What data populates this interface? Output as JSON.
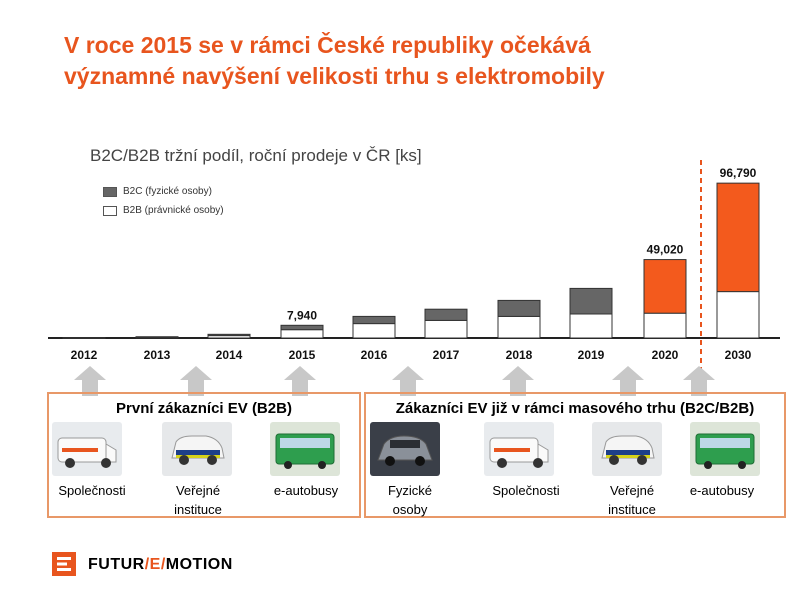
{
  "slide": {
    "title_line1": "V roce 2015 se v rámci České republiky očekává",
    "title_line2": "významné navýšení velikosti trhu s elektromobily"
  },
  "chart_data": {
    "type": "bar",
    "stacked": true,
    "title": "B2C/B2B tržní podíl, roční prodeje v ČR [ks]",
    "categories": [
      "2012",
      "2013",
      "2014",
      "2015",
      "2016",
      "2017",
      "2018",
      "2019",
      "2020",
      "2030"
    ],
    "series": [
      {
        "name": "B2B (právnické osoby)",
        "color": "#ffffff",
        "values": [
          100,
          400,
          1500,
          5200,
          9000,
          11000,
          13500,
          15000,
          15500,
          29000
        ]
      },
      {
        "name": "B2C (fyzické osoby)",
        "color": "#666666",
        "values": [
          100,
          400,
          800,
          2740,
          4500,
          7000,
          10000,
          16000,
          33520,
          67790
        ]
      }
    ],
    "highlight_categories": [
      "2020",
      "2030"
    ],
    "highlight_color": "#f35a1d",
    "total_labels": {
      "2015": "7,940",
      "2020": "49,020",
      "2030": "96,790"
    },
    "ylim": [
      0,
      100000
    ],
    "grid": false,
    "legend_position": "top-left",
    "divider_before_category": "2030"
  },
  "segments": {
    "left": {
      "title": "První zákazníci EV (B2B)",
      "items": [
        {
          "label_line1": "Společnosti",
          "label_line2": "",
          "icon": "van-icon"
        },
        {
          "label_line1": "Veřejné",
          "label_line2": "instituce",
          "icon": "police-car-icon"
        },
        {
          "label_line1": "e-autobusy",
          "label_line2": "",
          "icon": "bus-icon"
        }
      ]
    },
    "right": {
      "title": "Zákazníci EV již v rámci masového trhu (B2C/B2B)",
      "items": [
        {
          "label_line1": "Fyzické",
          "label_line2": "osoby",
          "icon": "car-icon"
        },
        {
          "label_line1": "Společnosti",
          "label_line2": "",
          "icon": "van-icon"
        },
        {
          "label_line1": "Veřejné",
          "label_line2": "instituce",
          "icon": "police-car-icon"
        },
        {
          "label_line1": "e-autobusy",
          "label_line2": "",
          "icon": "bus-icon"
        }
      ]
    }
  },
  "footer": {
    "brand_part1": "FUTUR",
    "brand_part2": "/E/",
    "brand_part3": "MOTION",
    "logo_icon": "cez-logo-icon"
  }
}
